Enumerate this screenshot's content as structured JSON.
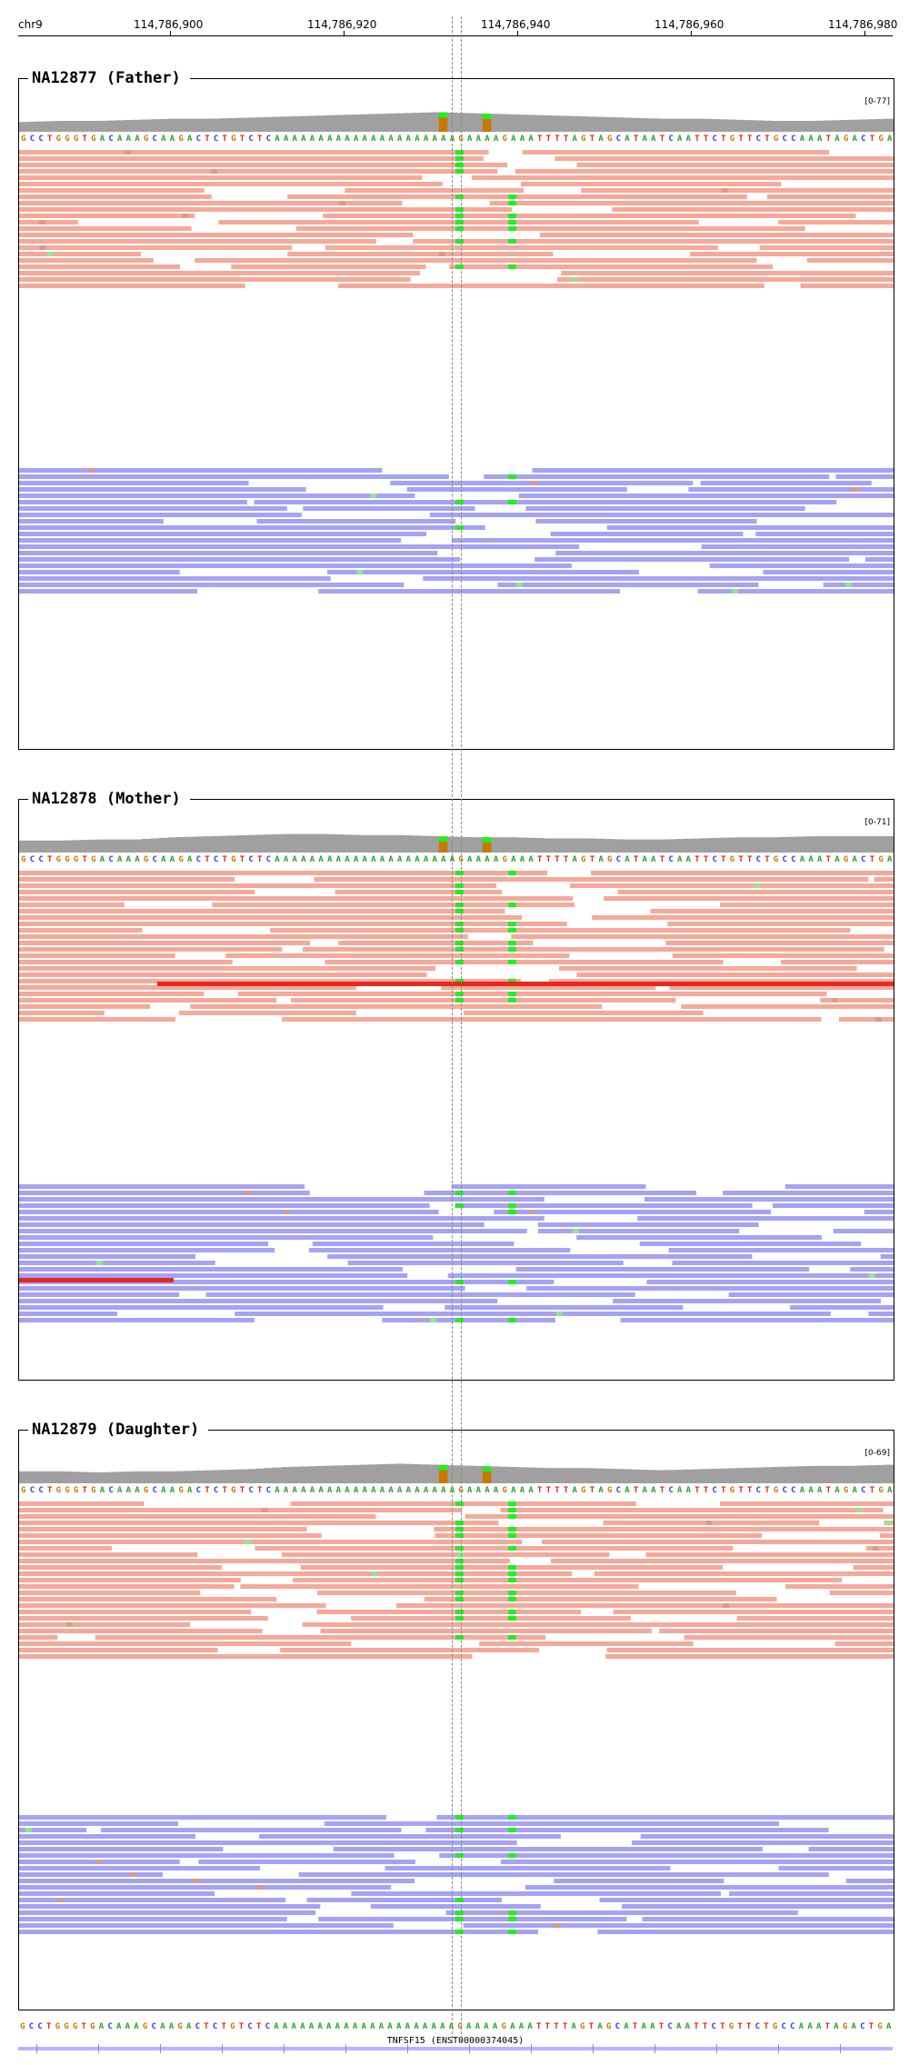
{
  "ruler": {
    "chromosome": "chr9",
    "ticks": [
      "114,786,900",
      "114,786,920",
      "114,786,940",
      "114,786,960",
      "114,786,980"
    ]
  },
  "reference_sequence": "GCCTGGGTGACAAAGCAAGACTCTGTCTCAAAAAAAAAAAAAAAAAAAAAGAAAAGAAATTTTAGTAGCATAATCAATTCTGTTCTGCCAAATAGACTGA",
  "base_colors": {
    "A": "#2aa02a",
    "C": "#3232ff",
    "G": "#c87800",
    "T": "#e62020"
  },
  "read_colors": {
    "forward": "#f5a99a",
    "reverse": "#a6a2f5",
    "discordant": "#e8281e",
    "mismatch_g": "#22ee22",
    "mismatch_c": "#e8701a"
  },
  "samples": [
    {
      "name": "NA12877 (Father)",
      "range": "[0-77]"
    },
    {
      "name": "NA12878 (Mother)",
      "range": "[0-71]"
    },
    {
      "name": "NA12879 (Daughter)",
      "range": "[0-69]"
    }
  ],
  "gene": {
    "label": "TNFSF15 (ENST00000374045)",
    "color": "#b4b4ff"
  }
}
